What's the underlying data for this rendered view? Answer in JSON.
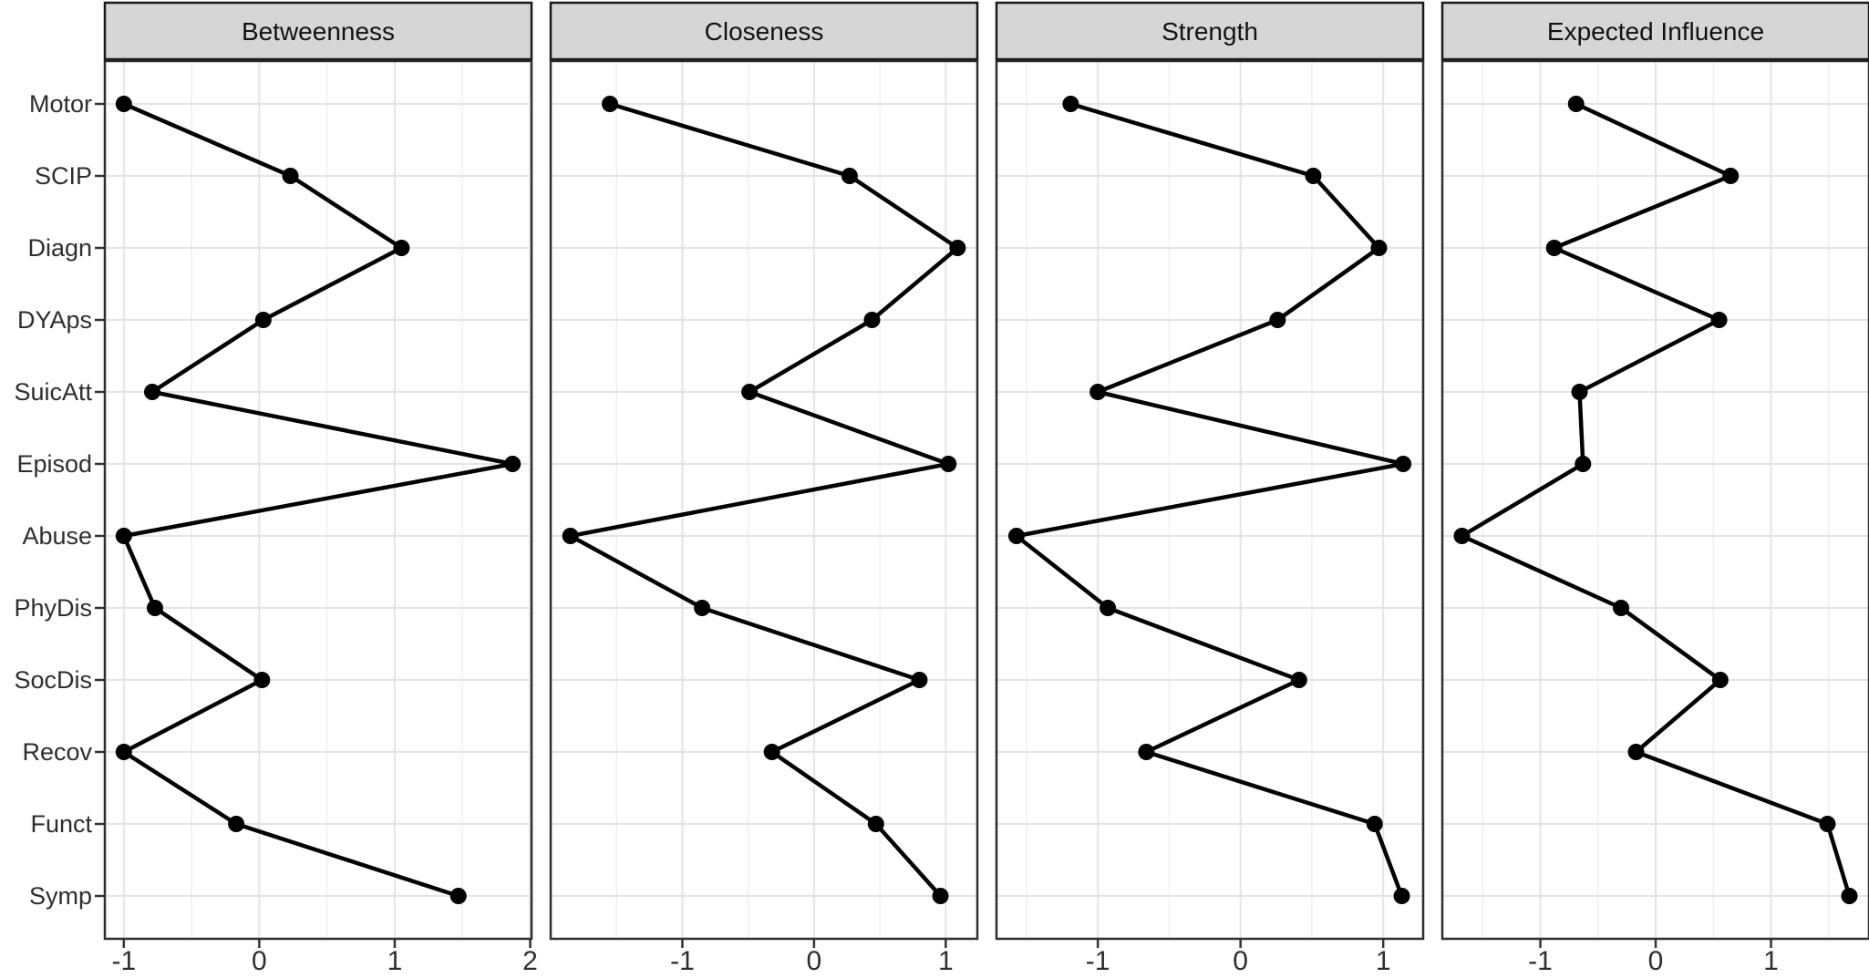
{
  "figure": {
    "colors": {
      "background": "#ffffff",
      "strip_bg": "#d6d6d6",
      "strip_border": "#1a1a1a",
      "panel_border": "#2e2e2e",
      "grid_major": "#e4e4e4",
      "grid_minor": "#f1f1f1",
      "line": "#000000",
      "point": "#000000",
      "tick": "#333333",
      "axis_text": "#2e2e2e"
    }
  },
  "chart_data": {
    "type": "line",
    "description": "Standardized node centrality indices (z-scores) across four facet panels; categorical y-axis shared, free x scales per panel, black points connected by lines.",
    "grid": true,
    "legend": "none",
    "categories": [
      "Motor",
      "SCIP",
      "Diagn",
      "DYAps",
      "SuicAtt",
      "Episod",
      "Abuse",
      "PhyDis",
      "SocDis",
      "Recov",
      "Funct",
      "Symp"
    ],
    "panels": [
      {
        "title": "Betweenness",
        "values": [
          -1.0,
          0.23,
          1.05,
          0.03,
          -0.79,
          1.87,
          -1.0,
          -0.77,
          0.02,
          -1.0,
          -0.17,
          1.47
        ],
        "xlim": [
          -1.14,
          2.01
        ],
        "xticks": [
          -1,
          0,
          1,
          2
        ],
        "xtick_labels": [
          "-1",
          "0",
          "1",
          "2"
        ]
      },
      {
        "title": "Closeness",
        "values": [
          -1.55,
          0.27,
          1.09,
          0.44,
          -0.49,
          1.02,
          -1.85,
          -0.85,
          0.8,
          -0.32,
          0.47,
          0.96
        ],
        "xlim": [
          -2.0,
          1.24
        ],
        "xticks": [
          -1,
          0,
          1
        ],
        "xtick_labels": [
          "-1",
          "0",
          "1"
        ]
      },
      {
        "title": "Strength",
        "values": [
          -1.19,
          0.51,
          0.97,
          0.26,
          -1.0,
          1.14,
          -1.57,
          -0.93,
          0.41,
          -0.66,
          0.94,
          1.13
        ],
        "xlim": [
          -1.71,
          1.28
        ],
        "xticks": [
          -1,
          0,
          1
        ],
        "xtick_labels": [
          "-1",
          "0",
          "1"
        ]
      },
      {
        "title": "Expected Influence",
        "values": [
          -0.69,
          0.65,
          -0.88,
          0.55,
          -0.66,
          -0.63,
          -1.68,
          -0.3,
          0.56,
          -0.17,
          1.49,
          1.68
        ],
        "xlim": [
          -1.85,
          1.85
        ],
        "xticks": [
          -1,
          0,
          1
        ],
        "xtick_labels": [
          "-1",
          "0",
          "1"
        ]
      }
    ]
  }
}
